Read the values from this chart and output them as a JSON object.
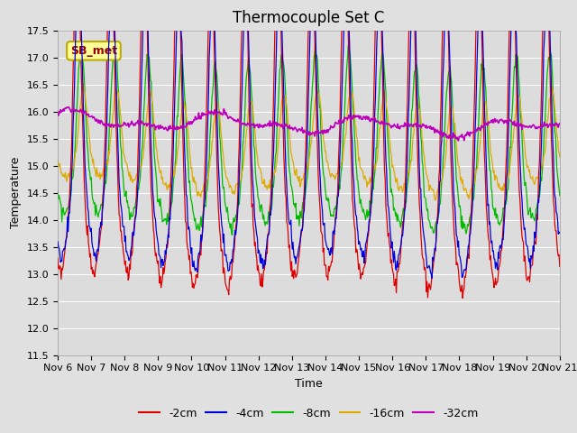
{
  "title": "Thermocouple Set C",
  "xlabel": "Time",
  "ylabel": "Temperature",
  "ylim": [
    11.5,
    17.5
  ],
  "yticks": [
    11.5,
    12.0,
    12.5,
    13.0,
    13.5,
    14.0,
    14.5,
    15.0,
    15.5,
    16.0,
    16.5,
    17.0,
    17.5
  ],
  "x_tick_labels": [
    "Nov 6",
    "Nov 7",
    "Nov 8",
    "Nov 9",
    "Nov 10",
    "Nov 11",
    "Nov 12",
    "Nov 13",
    "Nov 14",
    "Nov 15",
    "Nov 16",
    "Nov 17",
    "Nov 18",
    "Nov 19",
    "Nov 20",
    "Nov 21"
  ],
  "series_colors": {
    "-2cm": "#dd0000",
    "-4cm": "#0000dd",
    "-8cm": "#00bb00",
    "-16cm": "#ddaa00",
    "-32cm": "#bb00bb"
  },
  "background_color": "#e0e0e0",
  "plot_bg_color": "#dcdcdc",
  "annotation_text": "SB_met",
  "annotation_bg": "#ffff99",
  "annotation_border": "#bbaa00",
  "title_fontsize": 12,
  "axis_fontsize": 9,
  "tick_fontsize": 8
}
